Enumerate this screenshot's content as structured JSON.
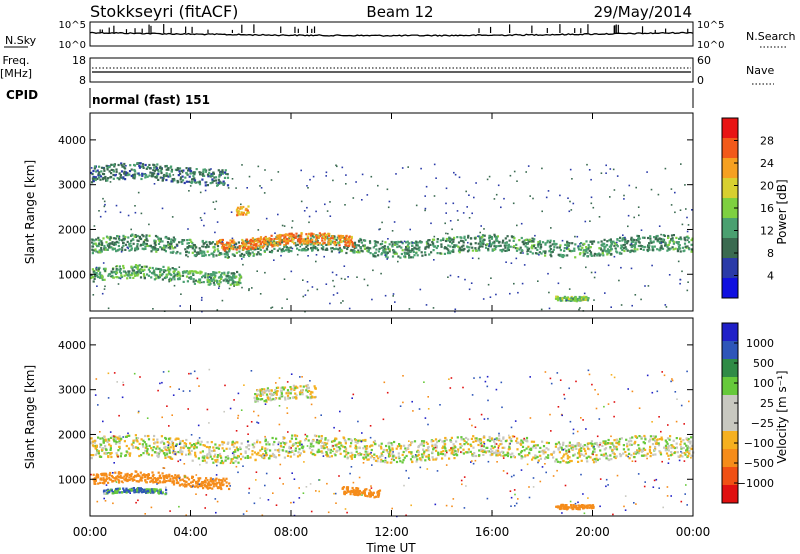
{
  "header": {
    "station": "Stokkseyri (fitACF)",
    "beam": "Beam 12",
    "date": "29/May/2014"
  },
  "aux_panels": {
    "nsky_label": "N.Sky",
    "nsky_ticks": [
      "10^5",
      "10^0"
    ],
    "nsearch_label": "N.Search",
    "nsearch_ticks": [
      "10^5",
      "10^0"
    ],
    "freq_label_1": "Freq.",
    "freq_label_2": "[MHz]",
    "freq_ticks": [
      "18",
      "8"
    ],
    "nave_label": "Nave",
    "nave_ticks": [
      "60",
      "0"
    ],
    "cpid_label": "CPID",
    "cpid_value": "normal (fast) 151"
  },
  "power_panel": {
    "ylabel": "Slant Range [km]",
    "cbar_label": "Power [dB]",
    "cbar_ticks": [
      "28",
      "24",
      "20",
      "16",
      "12",
      "8",
      "4"
    ],
    "cbar_colors": [
      "#e81414",
      "#f25a1a",
      "#f5a020",
      "#d8d030",
      "#7ed040",
      "#4aa070",
      "#3a6a50",
      "#2a3aa8",
      "#1010e0"
    ]
  },
  "velocity_panel": {
    "ylabel": "Slant Range [km]",
    "cbar_label": "Velocity [m s⁻¹]",
    "cbar_ticks": [
      "1000",
      "500",
      "100",
      "25",
      "−25",
      "−100",
      "−500",
      "−1000"
    ],
    "cbar_colors": [
      "#2020c8",
      "#2e56b8",
      "#2f8b46",
      "#66c93a",
      "#c8c8c0",
      "#c8c8c0",
      "#f5b020",
      "#f58c1a",
      "#f05014",
      "#e01010"
    ]
  },
  "xaxis": {
    "label": "Time UT",
    "ticks": [
      "00:00",
      "04:00",
      "08:00",
      "12:00",
      "16:00",
      "20:00",
      "00:00"
    ]
  },
  "chart_data": [
    {
      "type": "heatmap",
      "title": "Power",
      "xlabel": "Time UT",
      "ylabel": "Slant Range [km]",
      "xlim": [
        0,
        24
      ],
      "ylim": [
        180,
        4600
      ],
      "yticks": [
        1000,
        2000,
        3000,
        4000
      ],
      "bands": [
        {
          "t0": 0.0,
          "t1": 24.0,
          "range_km": 1650,
          "width_km": 300,
          "power_db": 10
        },
        {
          "t0": 5.0,
          "t1": 10.5,
          "range_km": 1750,
          "width_km": 200,
          "power_db": 24
        },
        {
          "t0": 0.0,
          "t1": 5.5,
          "range_km": 3250,
          "width_km": 300,
          "power_db": 8
        },
        {
          "t0": 0.0,
          "t1": 6.0,
          "range_km": 1000,
          "width_km": 250,
          "power_db": 12
        },
        {
          "t0": 5.8,
          "t1": 6.3,
          "range_km": 2500,
          "width_km": 150,
          "power_db": 22
        },
        {
          "t0": 18.5,
          "t1": 19.8,
          "range_km": 550,
          "width_km": 80,
          "power_db": 14
        }
      ]
    },
    {
      "type": "heatmap",
      "title": "Velocity",
      "xlabel": "Time UT",
      "ylabel": "Slant Range [km]",
      "xlim": [
        0,
        24
      ],
      "ylim": [
        180,
        4600
      ],
      "yticks": [
        1000,
        2000,
        3000,
        4000
      ],
      "bands": [
        {
          "t0": 0.0,
          "t1": 24.0,
          "range_km": 1700,
          "width_km": 400,
          "velocity_ms": 0
        },
        {
          "t0": 0.0,
          "t1": 5.5,
          "range_km": 1000,
          "width_km": 200,
          "velocity_ms": -300
        },
        {
          "t0": 0.5,
          "t1": 3.0,
          "range_km": 700,
          "width_km": 80,
          "velocity_ms": 100
        },
        {
          "t0": 10.0,
          "t1": 11.5,
          "range_km": 750,
          "width_km": 150,
          "velocity_ms": -400
        },
        {
          "t0": 18.5,
          "t1": 20.0,
          "range_km": 480,
          "width_km": 80,
          "velocity_ms": -250
        },
        {
          "t0": 6.5,
          "t1": 9.0,
          "range_km": 2900,
          "width_km": 250,
          "velocity_ms": 0
        }
      ]
    }
  ]
}
